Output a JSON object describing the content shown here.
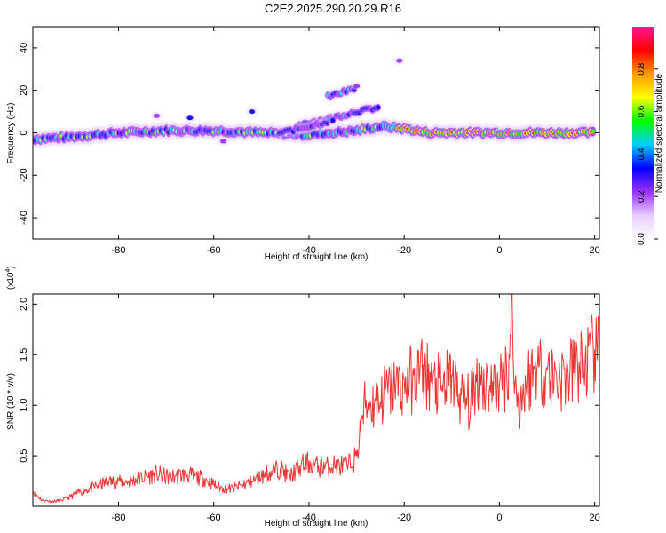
{
  "figure_title": "C2E2.2025.290.20.29.R16",
  "chart_data": [
    {
      "type": "heatmap",
      "title": "C2E2.2025.290.20.29.R16",
      "xlabel": "Height of straight line (km)",
      "ylabel": "Frequency (Hz)",
      "xlim": [
        -98,
        21
      ],
      "ylim": [
        -50,
        50
      ],
      "xticks": [
        -80,
        -60,
        -40,
        -20,
        0,
        20
      ],
      "yticks": [
        -40,
        -20,
        0,
        20,
        40
      ],
      "xtick_labels": [
        "-80",
        "-60",
        "-40",
        "-20",
        "0",
        "20"
      ],
      "ytick_labels": [
        "-40",
        "-20",
        "0",
        "20",
        "40"
      ],
      "colorbar": {
        "label": "Normalized spectral amplitude",
        "range": [
          0,
          1
        ],
        "ticks": [
          0.0,
          0.2,
          0.4,
          0.6,
          0.8
        ],
        "tick_labels": [
          "0.0",
          "0.2",
          "0.4",
          "0.6",
          "0.8"
        ],
        "colors": [
          "#ffffff",
          "#e6ccff",
          "#9b30ff",
          "#0000ff",
          "#00ccff",
          "#00ff00",
          "#ffff00",
          "#ff9900",
          "#ff0000",
          "#ff1493"
        ]
      },
      "ridges": [
        {
          "name": "main",
          "points": [
            [
              -98,
              -3
            ],
            [
              -90,
              -2
            ],
            [
              -80,
              0
            ],
            [
              -70,
              1
            ],
            [
              -60,
              1
            ],
            [
              -50,
              0
            ],
            [
              -40,
              -1
            ],
            [
              -30,
              1
            ],
            [
              -25,
              3
            ],
            [
              -20,
              2
            ],
            [
              -15,
              0
            ],
            [
              -10,
              0
            ],
            [
              -5,
              0
            ],
            [
              0,
              0
            ],
            [
              5,
              0
            ],
            [
              10,
              0
            ],
            [
              15,
              0
            ],
            [
              20,
              0
            ]
          ]
        },
        {
          "name": "upper-branch",
          "points": [
            [
              -42,
              4
            ],
            [
              -35,
              7
            ],
            [
              -30,
              10
            ],
            [
              -25,
              12
            ]
          ]
        },
        {
          "name": "upper-burst",
          "points": [
            [
              -36,
              17
            ],
            [
              -33,
              19
            ],
            [
              -30,
              21
            ]
          ]
        },
        {
          "name": "upper-branch-2",
          "points": [
            [
              -46,
              0
            ],
            [
              -40,
              3
            ],
            [
              -35,
              6
            ]
          ]
        }
      ],
      "blobs": [
        {
          "x": -52,
          "y": 10,
          "amp": 0.3
        },
        {
          "x": -21,
          "y": 34,
          "amp": 0.25
        },
        {
          "x": -72,
          "y": 8,
          "amp": 0.25
        },
        {
          "x": -65,
          "y": 7,
          "amp": 0.3
        },
        {
          "x": -58,
          "y": -4,
          "amp": 0.25
        },
        {
          "x": -30,
          "y": 22,
          "amp": 0.2
        }
      ]
    },
    {
      "type": "line",
      "xlabel": "Height of straight line (km)",
      "ylabel": "SNR (10 * v/v)",
      "multiplier_label": "(x10",
      "multiplier_exponent": "4",
      "multiplier_close": ")",
      "xlim": [
        -98,
        21
      ],
      "ylim": [
        0,
        2.1
      ],
      "xticks": [
        -80,
        -60,
        -40,
        -20,
        0,
        20
      ],
      "yticks": [
        0.5,
        1.0,
        1.5,
        2.0
      ],
      "xtick_labels": [
        "-80",
        "-60",
        "-40",
        "-20",
        "0",
        "20"
      ],
      "ytick_labels": [
        "0.5",
        "1.0",
        "1.5",
        "2.0"
      ],
      "series": [
        {
          "name": "SNR",
          "color": "#ee3333",
          "x": [
            -98,
            -96,
            -94,
            -92,
            -90,
            -88,
            -86,
            -84,
            -82,
            -80,
            -78,
            -76,
            -74,
            -72,
            -70,
            -68,
            -66,
            -64,
            -62,
            -60,
            -58,
            -56,
            -54,
            -52,
            -50,
            -48,
            -46,
            -44,
            -42,
            -40,
            -38,
            -36,
            -34,
            -32,
            -30,
            -29,
            -28,
            -26,
            -24,
            -22,
            -20,
            -18,
            -16,
            -14,
            -12,
            -10,
            -8,
            -6,
            -5,
            -4,
            -2,
            0,
            1,
            2,
            2.5,
            3,
            4,
            6,
            8,
            10,
            12,
            14,
            16,
            18,
            20,
            21
          ],
          "y": [
            0.15,
            0.06,
            0.05,
            0.06,
            0.1,
            0.15,
            0.18,
            0.22,
            0.25,
            0.25,
            0.25,
            0.28,
            0.3,
            0.33,
            0.3,
            0.3,
            0.33,
            0.3,
            0.28,
            0.22,
            0.18,
            0.18,
            0.22,
            0.25,
            0.3,
            0.35,
            0.38,
            0.3,
            0.4,
            0.45,
            0.4,
            0.42,
            0.42,
            0.4,
            0.5,
            0.9,
            1.05,
            1.05,
            1.15,
            1.2,
            1.25,
            1.3,
            1.4,
            1.25,
            1.2,
            1.3,
            1.1,
            1.05,
            1.3,
            1.3,
            1.2,
            1.2,
            1.3,
            1.5,
            2.1,
            1.3,
            1.0,
            1.3,
            1.4,
            1.35,
            1.3,
            1.3,
            1.4,
            1.45,
            1.55,
            1.5
          ]
        }
      ]
    }
  ]
}
